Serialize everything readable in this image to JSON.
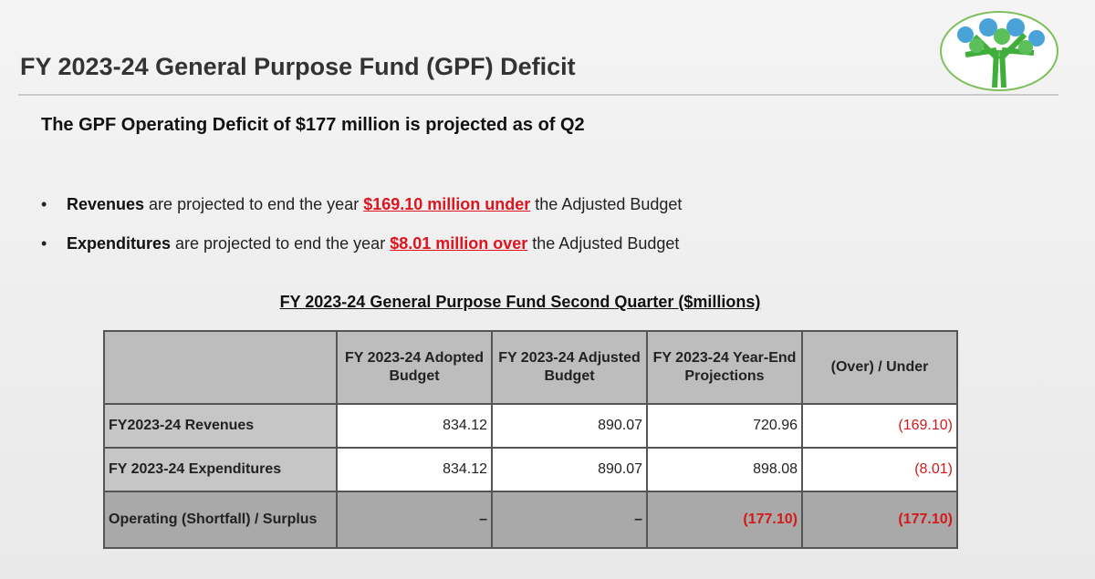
{
  "header": {
    "title": "FY 2023-24 General Purpose Fund (GPF) Deficit"
  },
  "subtitle": "The GPF Operating Deficit of $177 million is projected as of Q2",
  "bullets": [
    {
      "term": "Revenues",
      "text": " are projected to end the year ",
      "highlight": "$169.10 million under",
      "tail": " the Adjusted Budget"
    },
    {
      "term": "Expenditures",
      "text": " are projected to end the year ",
      "highlight": "$8.01 million over",
      "tail": " the Adjusted Budget"
    }
  ],
  "table": {
    "title": "FY 2023-24 General Purpose Fund Second Quarter ($millions)",
    "headers": [
      "FY 2023-24 Adopted Budget",
      "FY 2023-24 Adjusted Budget",
      "FY 2023-24 Year-End Projections",
      "(Over) / Under"
    ],
    "rows": [
      [
        "FY2023-24 Revenues",
        "834.12",
        "890.07",
        "720.96",
        "(169.10)"
      ],
      [
        "FY 2023-24 Expenditures",
        "834.12",
        "890.07",
        "898.08",
        "(8.01)"
      ],
      [
        "Operating (Shortfall) / Surplus",
        "–",
        "–",
        "(177.10)",
        "(177.10)"
      ]
    ]
  }
}
